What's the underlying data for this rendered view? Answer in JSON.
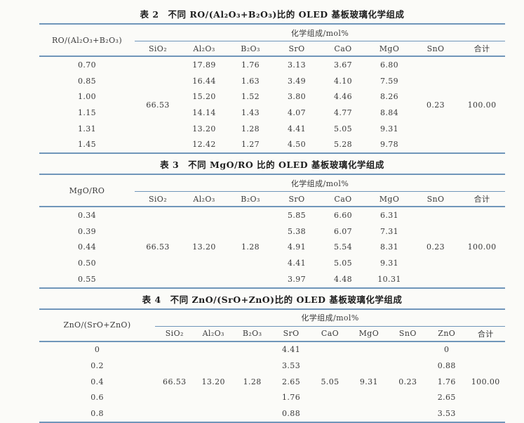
{
  "colors": {
    "rule": "#7096ba",
    "text": "#3a3a3a",
    "background": "#fbfbf8"
  },
  "t2": {
    "title": "表 2　不同 RO/(Al₂O₃+B₂O₃)比的 OLED 基板玻璃化学组成",
    "label_header": "RO/(Al₂O₃+B₂O₃)",
    "group_header": "化学组成/mol%",
    "col_headers": [
      "SiO₂",
      "Al₂O₃",
      "B₂O₃",
      "SrO",
      "CaO",
      "MgO",
      "SnO",
      "合计"
    ],
    "merged": {
      "sio2": "66.53",
      "sno": "0.23",
      "total": "100.00"
    },
    "rows": [
      {
        "label": "0.70",
        "al2o3": "17.89",
        "b2o3": "1.76",
        "sro": "3.13",
        "cao": "3.67",
        "mgo": "6.80"
      },
      {
        "label": "0.85",
        "al2o3": "16.44",
        "b2o3": "1.63",
        "sro": "3.49",
        "cao": "4.10",
        "mgo": "7.59"
      },
      {
        "label": "1.00",
        "al2o3": "15.20",
        "b2o3": "1.52",
        "sro": "3.80",
        "cao": "4.46",
        "mgo": "8.26"
      },
      {
        "label": "1.15",
        "al2o3": "14.14",
        "b2o3": "1.43",
        "sro": "4.07",
        "cao": "4.77",
        "mgo": "8.84"
      },
      {
        "label": "1.31",
        "al2o3": "13.20",
        "b2o3": "1.28",
        "sro": "4.41",
        "cao": "5.05",
        "mgo": "9.31"
      },
      {
        "label": "1.45",
        "al2o3": "12.42",
        "b2o3": "1.27",
        "sro": "4.50",
        "cao": "5.28",
        "mgo": "9.78"
      }
    ]
  },
  "t3": {
    "title": "表 3　不同 MgO/RO 比的 OLED 基板玻璃化学组成",
    "label_header": "MgO/RO",
    "group_header": "化学组成/mol%",
    "col_headers": [
      "SiO₂",
      "Al₂O₃",
      "B₂O₃",
      "SrO",
      "CaO",
      "MgO",
      "SnO",
      "合计"
    ],
    "merged": {
      "sio2": "66.53",
      "al2o3": "13.20",
      "b2o3": "1.28",
      "sno": "0.23",
      "total": "100.00"
    },
    "rows": [
      {
        "label": "0.34",
        "sro": "5.85",
        "cao": "6.60",
        "mgo": "6.31"
      },
      {
        "label": "0.39",
        "sro": "5.38",
        "cao": "6.07",
        "mgo": "7.31"
      },
      {
        "label": "0.44",
        "sro": "4.91",
        "cao": "5.54",
        "mgo": "8.31"
      },
      {
        "label": "0.50",
        "sro": "4.41",
        "cao": "5.05",
        "mgo": "9.31"
      },
      {
        "label": "0.55",
        "sro": "3.97",
        "cao": "4.48",
        "mgo": "10.31"
      }
    ]
  },
  "t4": {
    "title": "表 4　不同 ZnO/(SrO+ZnO)比的 OLED 基板玻璃化学组成",
    "label_header": "ZnO/(SrO+ZnO)",
    "group_header": "化学组成/mol%",
    "col_headers": [
      "SiO₂",
      "Al₂O₃",
      "B₂O₃",
      "SrO",
      "CaO",
      "MgO",
      "SnO",
      "ZnO",
      "合计"
    ],
    "merged": {
      "sio2": "66.53",
      "al2o3": "13.20",
      "b2o3": "1.28",
      "cao": "5.05",
      "mgo": "9.31",
      "sno": "0.23",
      "total": "100.00"
    },
    "rows": [
      {
        "label": "0",
        "sro": "4.41",
        "zno": "0"
      },
      {
        "label": "0.2",
        "sro": "3.53",
        "zno": "0.88"
      },
      {
        "label": "0.4",
        "sro": "2.65",
        "zno": "1.76"
      },
      {
        "label": "0.6",
        "sro": "1.76",
        "zno": "2.65"
      },
      {
        "label": "0.8",
        "sro": "0.88",
        "zno": "3.53"
      }
    ]
  }
}
